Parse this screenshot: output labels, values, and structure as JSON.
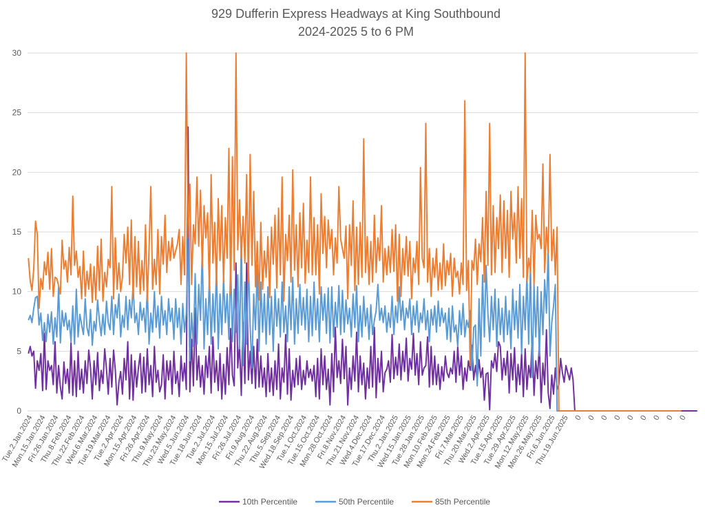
{
  "chart_data": {
    "type": "line",
    "title": "929 Dufferin Express Headways at King Southbound",
    "subtitle": "2024-2025 5 to 6 PM",
    "xlabel": "",
    "ylabel": "",
    "ylim": [
      0,
      30
    ],
    "yticks": [
      "0",
      "5",
      "10",
      "15",
      "20",
      "25",
      "30"
    ],
    "grid": true,
    "legend_position": "bottom",
    "x_tick_labels": [
      "Tue.2.Jan.2024",
      "Mon.15.Jan.2024",
      "Fri.26.Jan.2024",
      "Thu.8.Feb.2024",
      "Thu.22.Feb.2024",
      "Wed.6.Mar.2024",
      "Tue.19.Mar.2024",
      "Tue.2.Apr.2024",
      "Mon.15.Apr.2024",
      "Fri.26.Apr.2024",
      "Thu.9.May.2024",
      "Thu.23.May.2024",
      "Wed.5.Jun.2024",
      "Tue.18.Jun.2024",
      "Tue.2.Jul.2024",
      "Mon.15.Jul.2024",
      "Fri.26.Jul.2024",
      "Fri.9.Aug.2024",
      "Thu.22.Aug.2024",
      "Thu.5.Sep.2024",
      "Wed.18.Sep.2024",
      "Tue.1.Oct.2024",
      "Tue.15.Oct.2024",
      "Mon.28.Oct.2024",
      "Fri.8.Nov.2024",
      "Thu.21.Nov.2024",
      "Wed.4.Dec.2024",
      "Tue.17.Dec.2024",
      "Thu.2.Jan.2025",
      "Wed.15.Jan.2025",
      "Tue.28.Jan.2025",
      "Mon.10.Feb.2025",
      "Mon.24.Feb.2025",
      "Fri.7.Mar.2025",
      "Thu.20.Mar.2025",
      "Wed.2.Apr.2025",
      "Tue.15.Apr.2025",
      "Tue.29.Apr.2025",
      "Mon.12.May.2025",
      "Mon.26.May.2025",
      "Fri.6.Jun.2025",
      "Thu.19.Jun.2025",
      "0",
      "0",
      "0",
      "0",
      "0",
      "0",
      "0",
      "0",
      "0"
    ],
    "series": [
      {
        "name": "10th Percentile",
        "color": "#7030a0",
        "values": [
          4.8,
          5.4,
          4.6,
          5,
          1.9,
          4.2,
          3.4,
          4.8,
          1.7,
          6.5,
          1.8,
          4.2,
          3.4,
          3.8,
          2.2,
          5.8,
          1.5,
          3.8,
          2,
          1,
          4.1,
          2.3,
          3.5,
          1.5,
          5.7,
          1.3,
          4.2,
          1.2,
          5,
          1.8,
          3.5,
          1.5,
          4.2,
          2.3,
          5.1,
          3.6,
          1,
          4.2,
          2.2,
          4.9,
          1.7,
          3.4,
          2.3,
          5.2,
          3.5,
          1.4,
          4.4,
          2,
          5.1,
          3.4,
          0.5,
          2.4,
          3.3,
          1.4,
          4.4,
          2.6,
          5.8,
          1,
          4.7,
          0.9,
          4.2,
          2,
          3.6,
          4.8,
          1.5,
          4.5,
          1.6,
          5.2,
          2.2,
          3.8,
          1.2,
          5.4,
          2.4,
          3.4,
          1.6,
          2.2,
          4.7,
          1,
          4.2,
          2.6,
          4.2,
          1.4,
          5,
          2.3,
          3.3,
          1.2,
          4.6,
          2.5,
          4,
          1.8,
          23.8,
          1.6,
          6,
          2.1,
          8.6,
          2.6,
          4.6,
          2,
          3.8,
          1.4,
          4.6,
          2.8,
          5.4,
          1.5,
          6.2,
          2.4,
          4.2,
          1.7,
          4.8,
          1,
          3.9,
          1.4,
          5.3,
          2.2,
          6.9,
          3,
          2.1,
          12.4,
          3.6,
          5.6,
          1.3,
          7.4,
          2.3,
          12.4,
          2.6,
          5,
          2.3,
          5.4,
          1.9,
          6,
          2,
          4.6,
          2,
          3.6,
          1.2,
          4.8,
          1.6,
          3.6,
          1.3,
          4.2,
          1.8,
          5.6,
          1,
          3.6,
          2.4,
          6.4,
          1.4,
          5.2,
          0.9,
          3.4,
          2,
          4.4,
          2.2,
          4.6,
          1.8,
          3.4,
          2.2,
          4.2,
          2.8,
          3.5,
          2.5,
          3.8,
          1.2,
          4.4,
          1,
          5.2,
          2.2,
          4.6,
          1.8,
          3.5,
          0.5,
          4.8,
          1.6,
          7,
          2.8,
          4.2,
          2.3,
          6,
          2.7,
          5.4,
          0.5,
          3.6,
          1.8,
          4.6,
          2.5,
          6.6,
          1.6,
          4.6,
          2.2,
          4,
          1,
          3.6,
          1.9,
          5.4,
          2,
          7,
          1.1,
          4.4,
          2.4,
          5,
          1.6,
          3.2,
          3.5,
          4.2,
          2.4,
          6.4,
          2.7,
          4.5,
          3,
          5.6,
          2.6,
          5,
          3.3,
          6.1,
          2.5,
          4.4,
          3.5,
          6.5,
          3,
          4.8,
          2.2,
          5.8,
          3,
          3.6,
          3.8,
          6.2,
          2,
          5.4,
          2.2,
          4.6,
          2.2,
          3.9,
          1.8,
          3.7,
          2.5,
          4.6,
          3.2,
          2.8,
          3.6,
          3.1,
          5,
          2.4,
          5.4,
          3,
          4.6,
          1.8,
          3.6,
          2.5,
          4.2,
          3.4,
          5.5,
          2.6,
          3.8,
          2.6,
          4.3,
          2.8,
          3.6,
          0.9,
          3.1,
          3.2,
          0.1,
          4.2,
          3.6,
          4.8,
          3.3,
          5.8,
          5.4,
          2.6,
          4.4,
          3,
          5,
          1.5,
          4.8,
          2.6,
          5.3,
          1.6,
          3.9,
          2.2,
          4.8,
          1.2,
          5.2,
          1.8,
          3.8,
          2.8,
          6.2,
          1.3,
          4.2,
          2.7,
          5.6,
          0.7,
          4,
          2.2,
          6.8,
          1.5,
          0.2,
          3,
          1.4,
          3.6,
          1.8,
          2.2,
          4.4,
          3.2,
          2.4,
          3.8,
          3.2,
          2.6,
          3.6,
          2.6,
          0,
          0,
          0,
          0,
          0,
          0,
          0,
          0,
          0,
          0,
          0,
          0,
          0,
          0,
          0,
          0,
          0,
          0,
          0,
          0,
          0,
          0,
          0,
          0,
          0,
          0,
          0,
          0,
          0,
          0,
          0,
          0,
          0,
          0,
          0,
          0,
          0,
          0,
          0,
          0,
          0,
          0,
          0,
          0,
          0,
          0,
          0,
          0,
          0,
          0,
          0,
          0,
          0,
          0,
          0,
          0,
          0,
          0,
          0,
          0,
          0,
          0,
          0,
          0,
          0,
          0,
          0,
          0,
          0,
          0
        ]
      },
      {
        "name": "50th Percentile",
        "color": "#5b9bd5",
        "values": [
          7.6,
          8,
          7.4,
          8.6,
          9.5,
          9.6,
          7.2,
          8.2,
          5.9,
          7.4,
          5.8,
          8.1,
          6.6,
          8.3,
          5.6,
          7.8,
          6.2,
          10.4,
          5.7,
          8.4,
          7.1,
          8.2,
          6.8,
          7.6,
          5.8,
          8.8,
          5.6,
          10.2,
          6.2,
          8.1,
          7.2,
          6.4,
          9.4,
          7,
          6.3,
          8.5,
          5.5,
          7.5,
          6.7,
          9.3,
          7.6,
          6.3,
          8.1,
          6.4,
          9.2,
          7.4,
          6.8,
          9.6,
          6.4,
          8.9,
          7.8,
          9.8,
          6.2,
          8,
          7,
          9.6,
          6.8,
          9.3,
          7.8,
          10.6,
          7.4,
          8.2,
          6.4,
          9.1,
          7.6,
          8.6,
          6.6,
          10.2,
          5.6,
          8.2,
          6.6,
          10,
          7,
          8.8,
          6.1,
          9.6,
          7.2,
          8.4,
          6.4,
          9.4,
          7.5,
          8.6,
          6,
          9.4,
          7,
          8.6,
          5.6,
          9,
          6.6,
          8.2,
          14.6,
          4.2,
          8.2,
          5.4,
          11.5,
          5.6,
          10.6,
          7.6,
          13.5,
          5.2,
          9.4,
          6.4,
          11.2,
          5.6,
          9.8,
          6.6,
          12,
          5.2,
          9.8,
          6.4,
          11.2,
          7.4,
          9.8,
          6,
          12.3,
          5.8,
          10.2,
          6.6,
          11.4,
          5.2,
          14.6,
          3.8,
          10.8,
          5.6,
          12.6,
          7,
          3.6,
          9.8,
          6.8,
          12.2,
          5,
          10.8,
          6.6,
          9.8,
          5.6,
          10.4,
          6.4,
          9.6,
          5,
          10.2,
          7.1,
          9.4,
          6.2,
          10.8,
          6.6,
          8.8,
          5.8,
          10.4,
          6.8,
          11.2,
          5.6,
          9.4,
          6.5,
          10.6,
          7.2,
          9.5,
          6.8,
          10.2,
          5.8,
          9.6,
          6.3,
          10.8,
          6.8,
          9.4,
          5.8,
          10.4,
          7.6,
          9.8,
          6.5,
          10.3,
          5.7,
          10.4,
          6.2,
          9.1,
          7,
          10.5,
          6.4,
          10.1,
          6.6,
          9.3,
          7.3,
          8.6,
          6.2,
          9.8,
          7,
          10.5,
          5.8,
          8.8,
          6.2,
          9.6,
          7.1,
          8.6,
          6,
          8.9,
          6.4,
          7.6,
          8.4,
          10.6,
          7.6,
          8.6,
          7.4,
          8.8,
          6.6,
          8.2,
          7,
          9.6,
          6.4,
          8.8,
          7.4,
          10.4,
          7.6,
          9.2,
          6.8,
          8.6,
          7.8,
          9.4,
          6.4,
          8.8,
          7.2,
          9.2,
          6.6,
          8.2,
          7.4,
          9.4,
          6.8,
          8.4,
          5.8,
          8.5,
          7.2,
          8.8,
          6.6,
          9.2,
          7.1,
          8.6,
          7.4,
          8.2,
          6,
          8.6,
          5.8,
          8.8,
          6.6,
          7.2,
          5.4,
          8.4,
          6.4,
          9,
          6.2,
          7.6,
          7,
          8.4,
          3.4,
          7,
          7.2,
          2.1,
          9.4,
          4.6,
          11.4,
          6.2,
          12.2,
          8.2,
          5.8,
          9.6,
          6.8,
          10.2,
          5.4,
          9.4,
          6.4,
          8.6,
          5.8,
          9.6,
          6.4,
          8.4,
          5.2,
          10.2,
          6.8,
          9.2,
          6.1,
          10.6,
          4.8,
          9.6,
          6.8,
          11.4,
          5.6,
          12.2,
          2.8,
          10.6,
          6.2,
          10.4,
          4.6,
          10,
          6.4,
          11,
          8.2,
          13.6,
          4.6,
          7.4,
          8.8,
          10.6,
          0,
          0,
          0,
          0,
          0,
          0,
          0,
          0,
          0,
          0,
          0,
          0,
          0,
          0,
          0,
          0,
          0,
          0,
          0,
          0,
          0,
          0,
          0,
          0,
          0,
          0,
          0,
          0,
          0,
          0,
          0,
          0,
          0,
          0,
          0,
          0,
          0,
          0,
          0,
          0,
          0,
          0,
          0,
          0,
          0,
          0,
          0,
          0,
          0,
          0,
          0,
          0,
          0,
          0,
          0,
          0,
          0,
          0,
          0,
          0,
          0,
          0,
          0,
          0,
          0,
          0,
          0,
          0,
          0,
          0
        ]
      },
      {
        "name": "85th Percentile",
        "color": "#ed7d31",
        "values": [
          12.8,
          10.9,
          10.1,
          11.9,
          15.9,
          14.8,
          8.6,
          11.1,
          10.2,
          12.5,
          11.4,
          13.3,
          10.2,
          13.6,
          9.6,
          11.2,
          11.1,
          10.5,
          9.8,
          14.3,
          11.9,
          12.6,
          10.8,
          13.7,
          11.4,
          18,
          12.2,
          13.4,
          11.2,
          12.1,
          9.4,
          13.4,
          9.6,
          11.7,
          10.2,
          12.3,
          9.1,
          12.1,
          9.3,
          13.8,
          10.1,
          14.4,
          9.2,
          11.6,
          10.4,
          12.7,
          12,
          18.8,
          9.4,
          14.5,
          10.2,
          12.4,
          10,
          11.2,
          14.8,
          12.4,
          15.4,
          10.6,
          16,
          9.4,
          14.6,
          10.4,
          14.2,
          9.8,
          12.6,
          10.1,
          15.6,
          9.2,
          13.6,
          18.8,
          10.2,
          12.7,
          10.6,
          15.2,
          9.8,
          14.6,
          12.3,
          16.4,
          11.6,
          14.2,
          12.6,
          14.5,
          12.8,
          13.4,
          14,
          15.2,
          10.6,
          14.6,
          11.4,
          31,
          14.5,
          19,
          10.6,
          15.6,
          14,
          19.6,
          13.8,
          18.5,
          12,
          17.2,
          14.5,
          16.6,
          10.1,
          19.8,
          12.4,
          15.8,
          10.6,
          17.8,
          12.6,
          17.2,
          10.8,
          16.2,
          12.8,
          22,
          9.8,
          21.3,
          11.8,
          31.5,
          13.5,
          17.7,
          12.8,
          16.3,
          12.4,
          19.8,
          10.8,
          21.5,
          12.2,
          18.4,
          10.4,
          14.2,
          9.3,
          15.8,
          10.2,
          13.4,
          11.2,
          14.6,
          9.5,
          15.4,
          12.3,
          16.4,
          10.3,
          17,
          11.4,
          19.6,
          9.2,
          14.8,
          12.6,
          16.4,
          10.8,
          20.2,
          11.8,
          15.6,
          10.4,
          16.6,
          12,
          17.4,
          10.7,
          14.3,
          11.6,
          19.6,
          11.4,
          16.2,
          11.4,
          15.6,
          9.8,
          18.2,
          13.2,
          16.3,
          12,
          16,
          13.6,
          15.2,
          11.4,
          14.5,
          12.4,
          18.8,
          14.4,
          13.6,
          12.8,
          15.5,
          9.4,
          15.6,
          12.2,
          17.6,
          10.1,
          15.4,
          10.6,
          15.8,
          11.2,
          22.8,
          11.6,
          14.6,
          10.6,
          14.2,
          10.8,
          16.4,
          11.6,
          14.5,
          12.6,
          17.2,
          10.8,
          13.6,
          11.4,
          13.8,
          11.6,
          15.2,
          11.7,
          15.6,
          9.2,
          14.8,
          9.6,
          13.6,
          11.4,
          14.6,
          11.3,
          14.2,
          9.4,
          12.8,
          11.6,
          14.2,
          10.6,
          20.4,
          12.8,
          12,
          24.1,
          10.8,
          13.6,
          9.6,
          12.8,
          11.2,
          13.6,
          10.1,
          12.4,
          10.2,
          14,
          10.5,
          12.6,
          11.4,
          13.2,
          9.6,
          12.8,
          11.2,
          11.7,
          9.8,
          12.4,
          10.6,
          26,
          10.1,
          12.6,
          3.8,
          12.6,
          11.8,
          14.4,
          10.6,
          14,
          12.5,
          16.2,
          10.8,
          18.4,
          12.2,
          24.1,
          11.4,
          17.2,
          11.6,
          16.2,
          13.6,
          18.1,
          11.6,
          17.6,
          12.8,
          16.8,
          11.2,
          18.4,
          14.4,
          16.6,
          12.4,
          18.8,
          12.8,
          17.8,
          11.2,
          30.1,
          10.8,
          12.8,
          11.6,
          16.8,
          10.6,
          16.4,
          14.4,
          14.8,
          13.6,
          20.7,
          11.6,
          15.4,
          13.2,
          21.5,
          12.6,
          15.2,
          11.4,
          15.4,
          0,
          0,
          0,
          0,
          0,
          0,
          0,
          0,
          0,
          0,
          0,
          0,
          0,
          0,
          0,
          0,
          0,
          0,
          0,
          0,
          0,
          0,
          0,
          0,
          0,
          0,
          0,
          0,
          0,
          0,
          0,
          0,
          0,
          0,
          0,
          0,
          0,
          0,
          0,
          0,
          0,
          0,
          0,
          0,
          0,
          0,
          0,
          0,
          0,
          0,
          0,
          0,
          0,
          0,
          0,
          0,
          0,
          0,
          0,
          0,
          0,
          0,
          0,
          0,
          0,
          0,
          0,
          0,
          0,
          0
        ]
      }
    ]
  }
}
